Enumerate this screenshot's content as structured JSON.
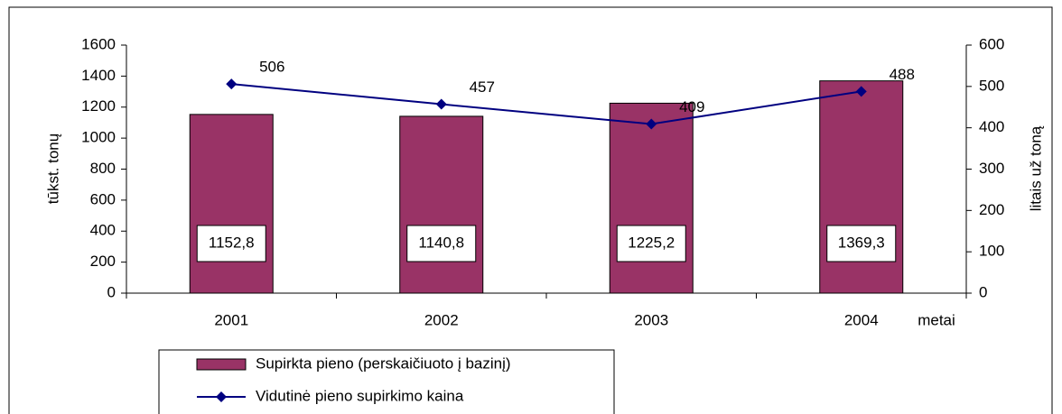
{
  "chart_data": {
    "type": "bar",
    "categories": [
      "2001",
      "2002",
      "2003",
      "2004"
    ],
    "x_label": "metai",
    "y_label": "tūkst. tonų",
    "y2_label": "litais už toną",
    "series": [
      {
        "name": "Supirkta pieno (perskaičiuoto į bazinį)",
        "type": "bar",
        "color": "#993366",
        "values": [
          1152.8,
          1140.8,
          1225.2,
          1369.3
        ],
        "value_labels": [
          "1152,8",
          "1140,8",
          "1225,2",
          "1369,3"
        ]
      },
      {
        "name": "Vidutinė pieno supirkimo kaina",
        "type": "line",
        "axis": "y2",
        "color": "#000080",
        "values": [
          506,
          457,
          409,
          488
        ]
      }
    ],
    "ylim": [
      0,
      1600
    ],
    "yticks": [
      0,
      200,
      400,
      600,
      800,
      1000,
      1200,
      1400,
      1600
    ],
    "y2lim": [
      0,
      600
    ],
    "y2ticks": [
      0,
      100,
      200,
      300,
      400,
      500,
      600
    ]
  }
}
